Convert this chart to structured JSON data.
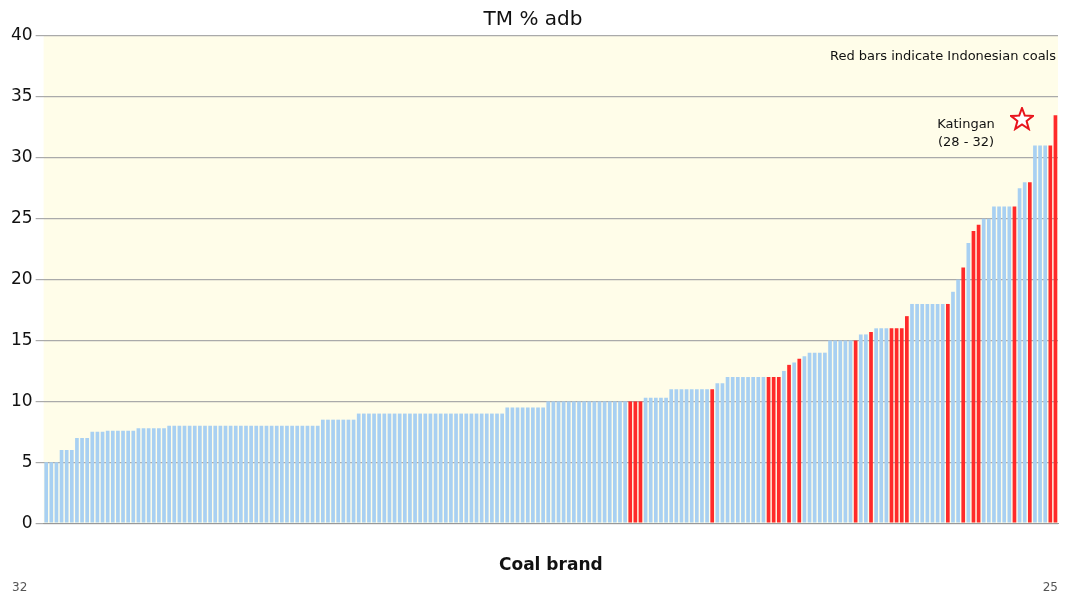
{
  "chart_data": {
    "type": "bar",
    "title": "TM % adb",
    "xlabel": "Coal brand",
    "categories": [
      null,
      null,
      null,
      null,
      null,
      null,
      null,
      null,
      null,
      null,
      null,
      null,
      null,
      null,
      null,
      null,
      null,
      null,
      null,
      null,
      null,
      null,
      null,
      null,
      null,
      null,
      null,
      null,
      null,
      null,
      null,
      null,
      null,
      null,
      null,
      null,
      null,
      null,
      null,
      null,
      null,
      null,
      null,
      null,
      null,
      null,
      null,
      null,
      null,
      null,
      null,
      null,
      null,
      null,
      null,
      null,
      null,
      null,
      null,
      null,
      null,
      null,
      null,
      null,
      null,
      null,
      null,
      null,
      null,
      null,
      null,
      null,
      null,
      null,
      null,
      null,
      null,
      null,
      null,
      null,
      null,
      null,
      null,
      null,
      null,
      null,
      null,
      null,
      null,
      null,
      null,
      null,
      null,
      null,
      null,
      null,
      null,
      null,
      null,
      null,
      null,
      null,
      null,
      null,
      null,
      null,
      null,
      null,
      null,
      null,
      null,
      null,
      null,
      null,
      null,
      null,
      null,
      null,
      null,
      null,
      null,
      null,
      null,
      null,
      null,
      null,
      null,
      null,
      null,
      null,
      null,
      null,
      null,
      null,
      null,
      null,
      null,
      null,
      null,
      null,
      null,
      null,
      null,
      null,
      null,
      null,
      null,
      null,
      null,
      null,
      null,
      null,
      null,
      null,
      null,
      null,
      null,
      null,
      null,
      null,
      null,
      null,
      null,
      null,
      null,
      null,
      null,
      null,
      null,
      null,
      null,
      null,
      null,
      null,
      null,
      null,
      null,
      null,
      null,
      null,
      null,
      null,
      null,
      null,
      null,
      null,
      null,
      null,
      null,
      null,
      null,
      null,
      null,
      null,
      null,
      null,
      null,
      null
    ],
    "values": [
      5,
      5,
      5,
      6,
      6,
      6,
      7,
      7,
      7,
      7.5,
      7.5,
      7.5,
      7.6,
      7.6,
      7.6,
      7.6,
      7.6,
      7.6,
      7.8,
      7.8,
      7.8,
      7.8,
      7.8,
      7.8,
      8,
      8,
      8,
      8,
      8,
      8,
      8,
      8,
      8,
      8,
      8,
      8,
      8,
      8,
      8,
      8,
      8,
      8,
      8,
      8,
      8,
      8,
      8,
      8,
      8,
      8,
      8,
      8,
      8,
      8,
      8.5,
      8.5,
      8.5,
      8.5,
      8.5,
      8.5,
      8.5,
      9,
      9,
      9,
      9,
      9,
      9,
      9,
      9,
      9,
      9,
      9,
      9,
      9,
      9,
      9,
      9,
      9,
      9,
      9,
      9,
      9,
      9,
      9,
      9,
      9,
      9,
      9,
      9,
      9,
      9.5,
      9.5,
      9.5,
      9.5,
      9.5,
      9.5,
      9.5,
      9.5,
      10,
      10,
      10,
      10,
      10,
      10,
      10,
      10,
      10,
      10,
      10,
      10,
      10,
      10,
      10,
      10,
      10,
      10,
      10,
      10.3,
      10.3,
      10.3,
      10.3,
      10.3,
      11,
      11,
      11,
      11,
      11,
      11,
      11,
      11,
      11,
      11.5,
      11.5,
      12,
      12,
      12,
      12,
      12,
      12,
      12,
      12,
      12,
      12,
      12,
      12.5,
      13,
      13.2,
      13.5,
      13.7,
      14,
      14,
      14,
      14,
      15,
      15,
      15,
      15,
      15,
      15,
      15.5,
      15.5,
      15.7,
      16,
      16,
      16,
      16,
      16,
      16,
      17,
      18,
      18,
      18,
      18,
      18,
      18,
      18,
      18,
      19,
      20,
      21,
      23,
      24,
      24.5,
      25,
      25,
      26,
      26,
      26,
      26,
      26,
      27.5,
      28,
      28,
      31,
      31,
      31,
      31,
      33.5
    ],
    "colors": [
      "#a8d0f2",
      "#a8d0f2",
      "#a8d0f2",
      "#a8d0f2",
      "#a8d0f2",
      "#a8d0f2",
      "#a8d0f2",
      "#a8d0f2",
      "#a8d0f2",
      "#a8d0f2",
      "#a8d0f2",
      "#a8d0f2",
      "#a8d0f2",
      "#a8d0f2",
      "#a8d0f2",
      "#a8d0f2",
      "#a8d0f2",
      "#a8d0f2",
      "#a8d0f2",
      "#a8d0f2",
      "#a8d0f2",
      "#a8d0f2",
      "#a8d0f2",
      "#a8d0f2",
      "#a8d0f2",
      "#a8d0f2",
      "#a8d0f2",
      "#a8d0f2",
      "#a8d0f2",
      "#a8d0f2",
      "#a8d0f2",
      "#a8d0f2",
      "#a8d0f2",
      "#a8d0f2",
      "#a8d0f2",
      "#a8d0f2",
      "#a8d0f2",
      "#a8d0f2",
      "#a8d0f2",
      "#a8d0f2",
      "#a8d0f2",
      "#a8d0f2",
      "#a8d0f2",
      "#a8d0f2",
      "#a8d0f2",
      "#a8d0f2",
      "#a8d0f2",
      "#a8d0f2",
      "#a8d0f2",
      "#a8d0f2",
      "#a8d0f2",
      "#a8d0f2",
      "#a8d0f2",
      "#a8d0f2",
      "#a8d0f2",
      "#a8d0f2",
      "#a8d0f2",
      "#a8d0f2",
      "#a8d0f2",
      "#a8d0f2",
      "#a8d0f2",
      "#a8d0f2",
      "#a8d0f2",
      "#a8d0f2",
      "#a8d0f2",
      "#a8d0f2",
      "#a8d0f2",
      "#a8d0f2",
      "#a8d0f2",
      "#a8d0f2",
      "#a8d0f2",
      "#a8d0f2",
      "#a8d0f2",
      "#a8d0f2",
      "#a8d0f2",
      "#a8d0f2",
      "#a8d0f2",
      "#a8d0f2",
      "#a8d0f2",
      "#a8d0f2",
      "#a8d0f2",
      "#a8d0f2",
      "#a8d0f2",
      "#a8d0f2",
      "#a8d0f2",
      "#a8d0f2",
      "#a8d0f2",
      "#a8d0f2",
      "#a8d0f2",
      "#a8d0f2",
      "#a8d0f2",
      "#a8d0f2",
      "#a8d0f2",
      "#a8d0f2",
      "#a8d0f2",
      "#a8d0f2",
      "#a8d0f2",
      "#a8d0f2",
      "#a8d0f2",
      "#a8d0f2",
      "#a8d0f2",
      "#a8d0f2",
      "#a8d0f2",
      "#a8d0f2",
      "#a8d0f2",
      "#a8d0f2",
      "#a8d0f2",
      "#a8d0f2",
      "#a8d0f2",
      "#a8d0f2",
      "#a8d0f2",
      "#a8d0f2",
      "#a8d0f2",
      "#a8d0f2",
      "#ff2a2a",
      "#ff2a2a",
      "#ff2a2a",
      "#a8d0f2",
      "#a8d0f2",
      "#a8d0f2",
      "#a8d0f2",
      "#a8d0f2",
      "#a8d0f2",
      "#a8d0f2",
      "#a8d0f2",
      "#a8d0f2",
      "#a8d0f2",
      "#a8d0f2",
      "#a8d0f2",
      "#a8d0f2",
      "#ff2a2a",
      "#a8d0f2",
      "#a8d0f2",
      "#a8d0f2",
      "#a8d0f2",
      "#a8d0f2",
      "#a8d0f2",
      "#a8d0f2",
      "#a8d0f2",
      "#a8d0f2",
      "#a8d0f2",
      "#ff2a2a",
      "#ff2a2a",
      "#ff2a2a",
      "#a8d0f2",
      "#ff2a2a",
      "#a8d0f2",
      "#ff2a2a",
      "#a8d0f2",
      "#a8d0f2",
      "#a8d0f2",
      "#a8d0f2",
      "#a8d0f2",
      "#a8d0f2",
      "#a8d0f2",
      "#a8d0f2",
      "#a8d0f2",
      "#a8d0f2",
      "#ff2a2a",
      "#a8d0f2",
      "#a8d0f2",
      "#ff2a2a",
      "#a8d0f2",
      "#a8d0f2",
      "#a8d0f2",
      "#ff2a2a",
      "#ff2a2a",
      "#ff2a2a",
      "#ff2a2a",
      "#a8d0f2",
      "#a8d0f2",
      "#a8d0f2",
      "#a8d0f2",
      "#a8d0f2",
      "#a8d0f2",
      "#a8d0f2",
      "#ff2a2a",
      "#a8d0f2",
      "#a8d0f2",
      "#ff2a2a",
      "#a8d0f2",
      "#ff2a2a",
      "#ff2a2a",
      "#a8d0f2",
      "#a8d0f2",
      "#a8d0f2",
      "#a8d0f2",
      "#a8d0f2",
      "#a8d0f2",
      "#ff2a2a",
      "#a8d0f2",
      "#a8d0f2",
      "#ff2a2a",
      "#a8d0f2",
      "#a8d0f2",
      "#a8d0f2",
      "#ff2a2a",
      "#ff2a2a"
    ],
    "ylim": [
      0,
      40
    ],
    "yticks": [
      0,
      5,
      10,
      15,
      20,
      25,
      30,
      35,
      40
    ],
    "grid": "y",
    "legend": false,
    "annotations": [
      "Red bars indicate Indonesian coals",
      "Katingan\n(28 - 32)",
      "32",
      "25"
    ]
  }
}
